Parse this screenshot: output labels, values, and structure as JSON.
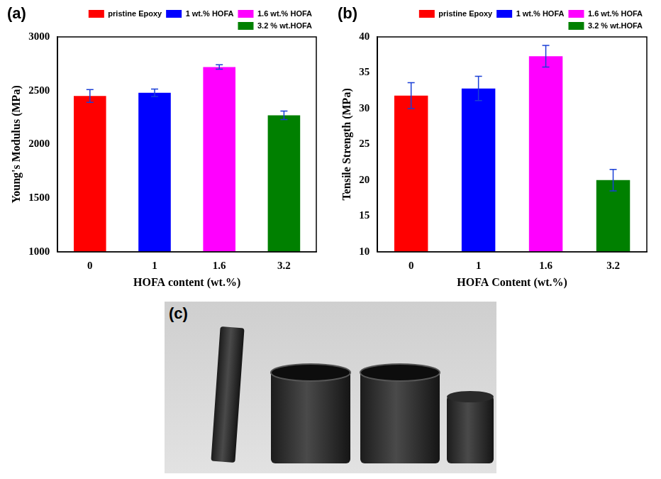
{
  "chart_data": [
    {
      "type": "bar",
      "title": "(a)",
      "x_label": "HOFA content (wt.%)",
      "y_label": "Young's Modulus (MPa)",
      "categories": [
        "0",
        "1",
        "1.6",
        "3.2"
      ],
      "series": [
        {
          "name": "pristine Epoxy",
          "color": "#ff0000",
          "values": [
            2450,
            null,
            null,
            null
          ],
          "errors": [
            60,
            null,
            null,
            null
          ]
        },
        {
          "name": "1 wt.% HOFA",
          "color": "#0000ff",
          "values": [
            null,
            2480,
            null,
            null
          ],
          "errors": [
            null,
            35,
            null,
            null
          ]
        },
        {
          "name": "1.6 wt.% HOFA",
          "color": "#ff00ff",
          "values": [
            null,
            null,
            2720,
            null
          ],
          "errors": [
            null,
            null,
            20,
            null
          ]
        },
        {
          "name": "3.2 % wt.HOFA",
          "color": "#008000",
          "values": [
            null,
            null,
            null,
            2270
          ],
          "errors": [
            null,
            null,
            null,
            40
          ]
        }
      ],
      "ylim": [
        1000,
        3000
      ],
      "yticks": [
        1000,
        1500,
        2000,
        2500,
        3000
      ],
      "grid": false,
      "legend": "top"
    },
    {
      "type": "bar",
      "title": "(b)",
      "x_label": "HOFA Content (wt.%)",
      "y_label": "Tensile Strength (MPa)",
      "categories": [
        "0",
        "1",
        "1.6",
        "3.2"
      ],
      "series": [
        {
          "name": "pristine Epoxy",
          "color": "#ff0000",
          "values": [
            31.8,
            null,
            null,
            null
          ],
          "errors": [
            1.8,
            null,
            null,
            null
          ]
        },
        {
          "name": "1 wt.% HOFA",
          "color": "#0000ff",
          "values": [
            null,
            32.8,
            null,
            null
          ],
          "errors": [
            null,
            1.7,
            null,
            null
          ]
        },
        {
          "name": "1.6 wt.% HOFA",
          "color": "#ff00ff",
          "values": [
            null,
            null,
            37.3,
            null
          ],
          "errors": [
            null,
            null,
            1.5,
            null
          ]
        },
        {
          "name": "3.2 % wt.HOFA",
          "color": "#008000",
          "values": [
            null,
            null,
            null,
            20.0
          ],
          "errors": [
            null,
            null,
            null,
            1.5
          ]
        }
      ],
      "ylim": [
        10,
        40
      ],
      "yticks": [
        10,
        15,
        20,
        25,
        30,
        35,
        40
      ],
      "grid": false,
      "legend": "top"
    }
  ],
  "image_panel": {
    "title": "(c)"
  }
}
